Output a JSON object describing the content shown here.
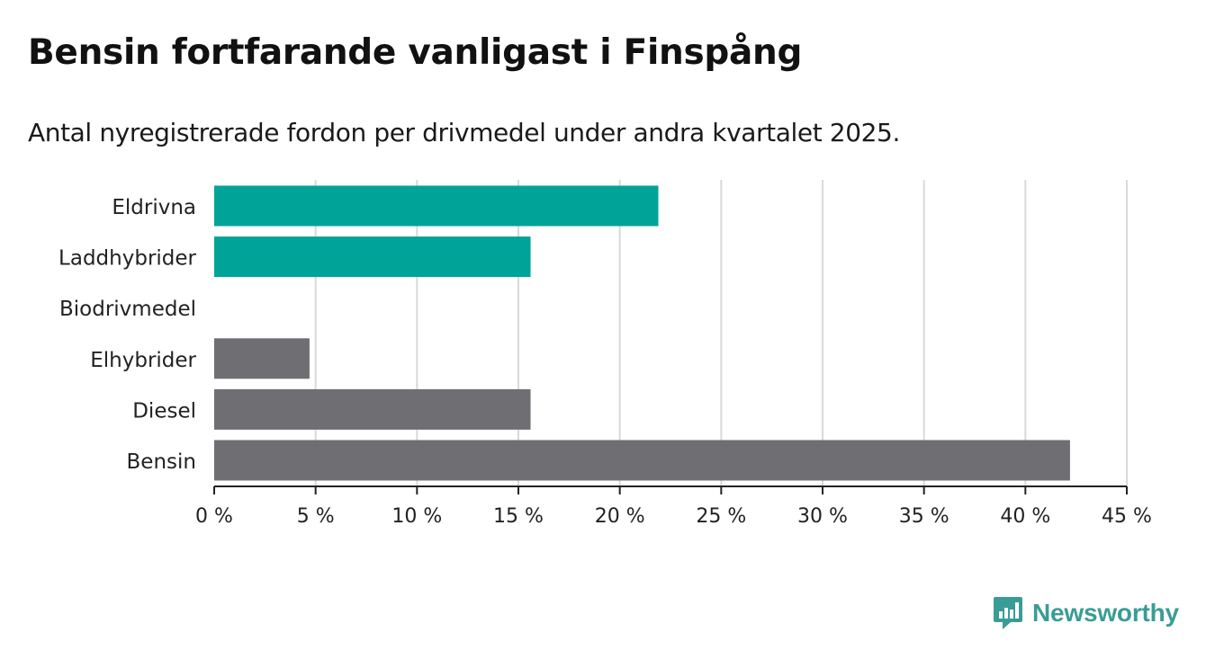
{
  "title": "Bensin fortfarande vanligast i Finspång",
  "subtitle": "Antal nyregistrerade fordon per drivmedel under andra kvartalet 2025.",
  "brand": {
    "name": "Newsworthy",
    "color": "#3a9c96",
    "icon": "newsworthy-logo-icon"
  },
  "colors": {
    "highlight": "#00a398",
    "default": "#6f6e73",
    "grid": "#d9d9d9",
    "axis": "#222222"
  },
  "chart_data": {
    "type": "bar",
    "orientation": "horizontal",
    "categories": [
      "Eldrivna",
      "Laddhybrider",
      "Biodrivmedel",
      "Elhybrider",
      "Diesel",
      "Bensin"
    ],
    "values": [
      21.9,
      15.6,
      0,
      4.7,
      15.6,
      42.2
    ],
    "highlighted": [
      true,
      true,
      false,
      false,
      false,
      false
    ],
    "xlim": [
      0,
      45
    ],
    "xticks": [
      0,
      5,
      10,
      15,
      20,
      25,
      30,
      35,
      40,
      45
    ],
    "tick_suffix": " %",
    "grid": true,
    "legend": "none"
  }
}
